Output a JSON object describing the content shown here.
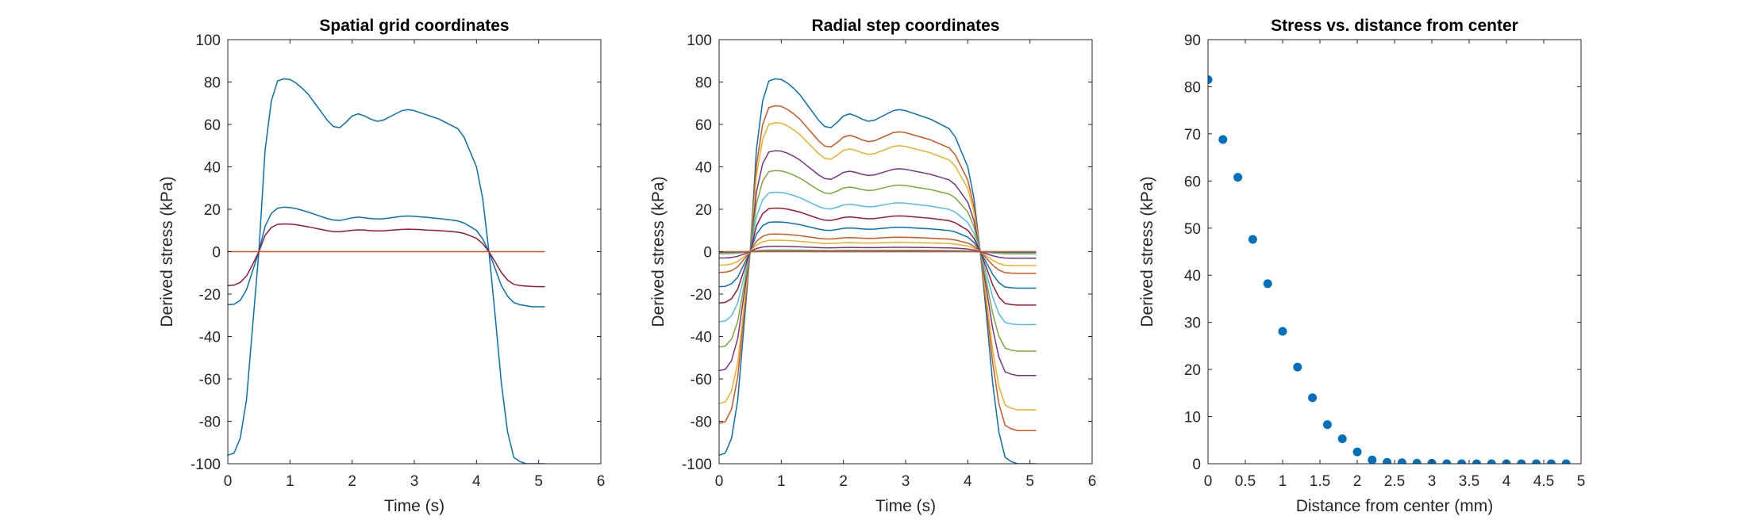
{
  "palette": [
    "#0072BD",
    "#D95319",
    "#EDB120",
    "#7E2F8E",
    "#77AC30",
    "#4DBEEE",
    "#A2142F"
  ],
  "chart_data": [
    {
      "type": "line",
      "title": "Spatial grid coordinates",
      "xlabel": "Time (s)",
      "ylabel": "Derived stress (kPa)",
      "xlim": [
        0,
        6
      ],
      "ylim": [
        -100,
        100
      ],
      "xticks": [
        0,
        1,
        2,
        3,
        4,
        5,
        6
      ],
      "yticks": [
        -100,
        -80,
        -60,
        -40,
        -20,
        0,
        20,
        40,
        60,
        80,
        100
      ],
      "grid": false,
      "x": [
        0,
        0.1,
        0.2,
        0.3,
        0.4,
        0.5,
        0.6,
        0.7,
        0.8,
        0.9,
        1.0,
        1.1,
        1.2,
        1.3,
        1.4,
        1.5,
        1.6,
        1.7,
        1.8,
        1.9,
        2.0,
        2.1,
        2.2,
        2.3,
        2.4,
        2.5,
        2.6,
        2.7,
        2.8,
        2.9,
        3.0,
        3.1,
        3.2,
        3.3,
        3.4,
        3.5,
        3.6,
        3.7,
        3.8,
        3.9,
        4.0,
        4.1,
        4.2,
        4.3,
        4.4,
        4.5,
        4.6,
        4.7,
        4.8,
        4.9,
        5.0,
        5.1
      ],
      "series": [
        {
          "color": "#0072BD",
          "values": [
            -96,
            -95,
            -88,
            -70,
            -35,
            0,
            48,
            71,
            80.5,
            81.5,
            81.2,
            79.5,
            77,
            74,
            70,
            66,
            62,
            59,
            58.5,
            61,
            64,
            65,
            64,
            62.5,
            61.5,
            62,
            63.5,
            65,
            66.5,
            67,
            66.5,
            65.5,
            64.5,
            63.5,
            62.5,
            61,
            59.5,
            58,
            54,
            47,
            40,
            25,
            0,
            -30,
            -62,
            -85,
            -97,
            -99,
            -100,
            -100,
            -100,
            -100
          ]
        },
        {
          "color": "#0072BD",
          "values": [
            -25,
            -24.8,
            -23,
            -18,
            -9,
            0,
            12,
            18,
            20.5,
            21,
            20.8,
            20.3,
            19.5,
            18.6,
            17.6,
            16.6,
            15.6,
            14.9,
            14.7,
            15.3,
            16,
            16.3,
            16,
            15.6,
            15.4,
            15.5,
            15.9,
            16.3,
            16.7,
            16.8,
            16.7,
            16.4,
            16.2,
            15.9,
            15.6,
            15.3,
            14.9,
            14.5,
            13.5,
            11.8,
            10,
            6,
            0,
            -8,
            -16,
            -21,
            -24,
            -25,
            -25.5,
            -26,
            -26,
            -26
          ]
        },
        {
          "color": "#A2142F",
          "values": [
            -16,
            -15.8,
            -14.5,
            -11.5,
            -6,
            0,
            7.7,
            11.4,
            12.9,
            13.1,
            13,
            12.7,
            12.2,
            11.7,
            11.1,
            10.5,
            9.9,
            9.5,
            9.4,
            9.7,
            10.1,
            10.3,
            10.2,
            9.9,
            9.8,
            9.8,
            10.1,
            10.3,
            10.5,
            10.6,
            10.5,
            10.4,
            10.2,
            10.1,
            9.9,
            9.7,
            9.5,
            9.2,
            8.6,
            7.5,
            6.3,
            3.8,
            0,
            -4.8,
            -9.8,
            -13.4,
            -15.4,
            -16,
            -16.2,
            -16.4,
            -16.5,
            -16.5
          ]
        },
        {
          "color": "#D95319",
          "values": [
            0,
            0,
            0,
            0,
            0,
            0,
            0,
            0,
            0,
            0,
            0,
            0,
            0,
            0,
            0,
            0,
            0,
            0,
            0,
            0,
            0,
            0,
            0,
            0,
            0,
            0,
            0,
            0,
            0,
            0,
            0,
            0,
            0,
            0,
            0,
            0,
            0,
            0,
            0,
            0,
            0,
            0,
            0,
            0,
            0,
            0,
            0,
            0,
            0,
            0,
            0,
            0
          ]
        }
      ]
    },
    {
      "type": "line",
      "title": "Radial step coordinates",
      "xlabel": "Time (s)",
      "ylabel": "Derived stress (kPa)",
      "xlim": [
        0,
        6
      ],
      "ylim": [
        -100,
        100
      ],
      "xticks": [
        0,
        1,
        2,
        3,
        4,
        5,
        6
      ],
      "yticks": [
        -100,
        -80,
        -60,
        -40,
        -20,
        0,
        20,
        40,
        60,
        80,
        100
      ],
      "grid": false,
      "base_profile": [
        -96,
        -95,
        -88,
        -70,
        -35,
        0,
        48,
        71,
        80.5,
        81.5,
        81.2,
        79.5,
        77,
        74,
        70,
        66,
        62,
        59,
        58.5,
        61,
        64,
        65,
        64,
        62.5,
        61.5,
        62,
        63.5,
        65,
        66.5,
        67,
        66.5,
        65.5,
        64.5,
        63.5,
        62.5,
        61,
        59.5,
        58,
        54,
        47,
        40,
        25,
        0,
        -30,
        -62,
        -85,
        -97,
        -99,
        -100,
        -100,
        -100,
        -100
      ],
      "series_scales": [
        1.0,
        0.844,
        0.746,
        0.584,
        0.469,
        0.344,
        0.252,
        0.172,
        0.102,
        0.066,
        0.031,
        0.01,
        0.005,
        0.002,
        0.001,
        0
      ],
      "x": [
        0,
        0.1,
        0.2,
        0.3,
        0.4,
        0.5,
        0.6,
        0.7,
        0.8,
        0.9,
        1.0,
        1.1,
        1.2,
        1.3,
        1.4,
        1.5,
        1.6,
        1.7,
        1.8,
        1.9,
        2.0,
        2.1,
        2.2,
        2.3,
        2.4,
        2.5,
        2.6,
        2.7,
        2.8,
        2.9,
        3.0,
        3.1,
        3.2,
        3.3,
        3.4,
        3.5,
        3.6,
        3.7,
        3.8,
        3.9,
        4.0,
        4.1,
        4.2,
        4.3,
        4.4,
        4.5,
        4.6,
        4.7,
        4.8,
        4.9,
        5.0,
        5.1
      ]
    },
    {
      "type": "scatter",
      "title": "Stress vs. distance from center",
      "xlabel": "Distance from center (mm)",
      "ylabel": "Derived stress (kPa)",
      "xlim": [
        0,
        5
      ],
      "ylim": [
        0,
        90
      ],
      "xticks": [
        0,
        0.5,
        1,
        1.5,
        2,
        2.5,
        3,
        3.5,
        4,
        4.5,
        5
      ],
      "xtick_labels": [
        "0",
        "0.5",
        "1",
        "1.5",
        "2",
        "2.5",
        "3",
        "3.5",
        "4",
        "4.5",
        "5"
      ],
      "yticks": [
        0,
        10,
        20,
        30,
        40,
        50,
        60,
        70,
        80,
        90
      ],
      "grid": false,
      "color": "#0072BD",
      "x": [
        0,
        0.2,
        0.4,
        0.6,
        0.8,
        1.0,
        1.2,
        1.4,
        1.6,
        1.8,
        2.0,
        2.2,
        2.4,
        2.6,
        2.8,
        3.0,
        3.2,
        3.4,
        3.6,
        3.8,
        4.0,
        4.2,
        4.4,
        4.6,
        4.8
      ],
      "y": [
        81.5,
        68.8,
        60.8,
        47.6,
        38.2,
        28.1,
        20.5,
        14.0,
        8.3,
        5.3,
        2.5,
        0.8,
        0.3,
        0.2,
        0.1,
        0.1,
        0,
        0,
        0,
        0,
        0,
        0,
        0,
        0,
        0
      ]
    }
  ]
}
